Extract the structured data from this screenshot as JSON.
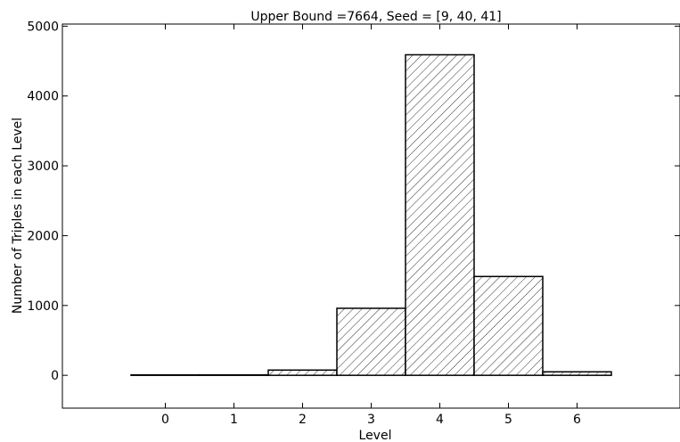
{
  "chart_data": {
    "type": "bar",
    "title": "Upper Bound =7664, Seed = [9, 40, 41]",
    "xlabel": "Level",
    "ylabel": "Number of Triples in each Level",
    "categories": [
      "0",
      "1",
      "2",
      "3",
      "4",
      "5",
      "6"
    ],
    "x": [
      0,
      1,
      2,
      3,
      4,
      5,
      6
    ],
    "values": [
      1,
      3,
      75,
      960,
      4590,
      1415,
      50
    ],
    "xlim": [
      -1.5,
      7.5
    ],
    "ylim": [
      -470,
      5030
    ],
    "yticks": [
      "0",
      "1000",
      "2000",
      "3000",
      "4000",
      "5000"
    ],
    "fill": "hatched",
    "bar_color": "#ffffff",
    "edge_color": "#000000",
    "grid": false,
    "legend": "none"
  }
}
